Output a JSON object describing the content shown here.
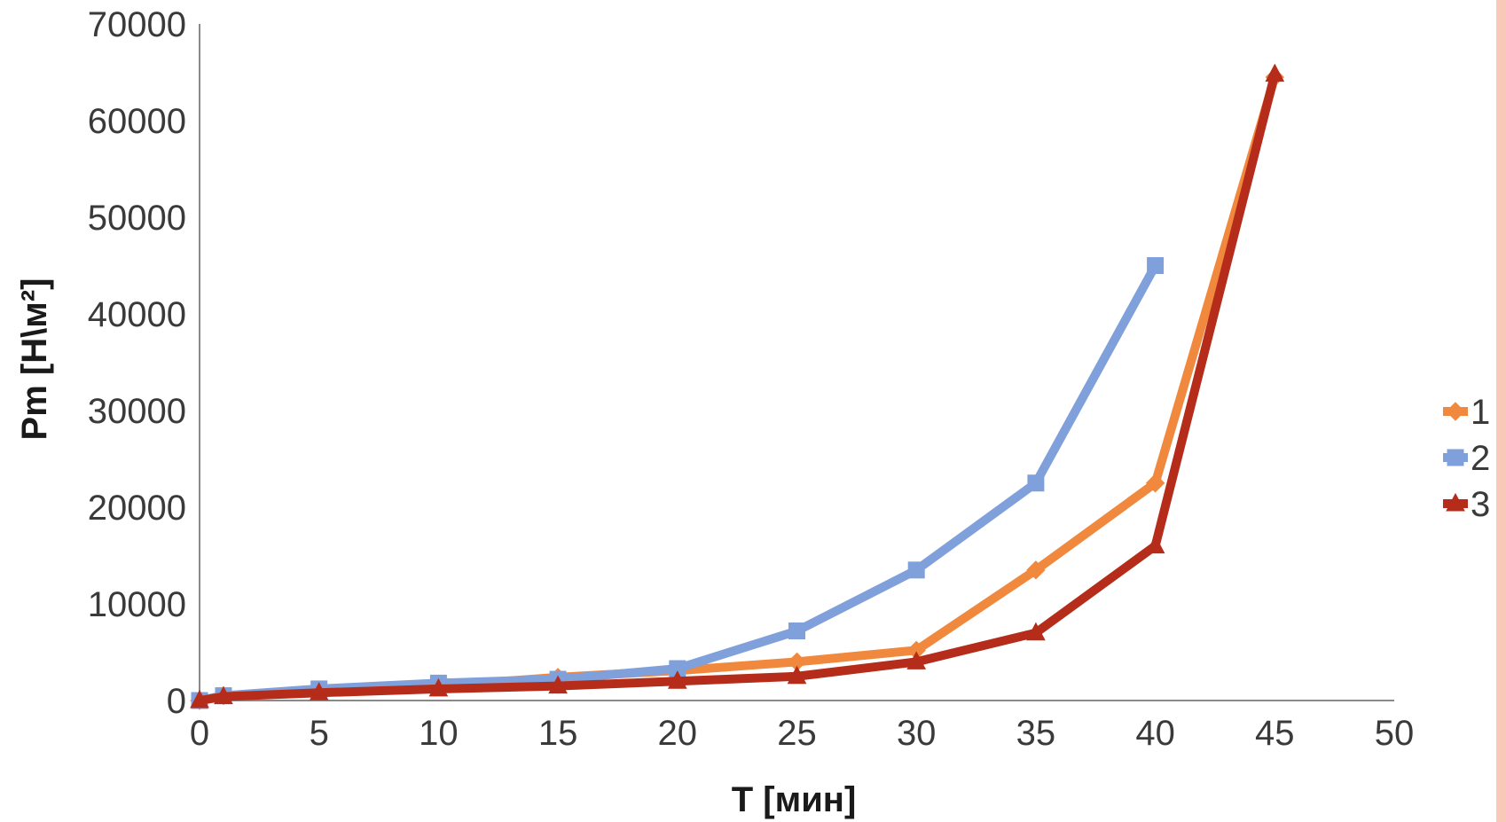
{
  "chart_data": {
    "type": "line",
    "title": "",
    "xlabel": "T  [мин]",
    "ylabel": "Pm [Н\\м²]",
    "xlim": [
      0,
      50
    ],
    "ylim": [
      0,
      70000
    ],
    "x_ticks": [
      0,
      5,
      10,
      15,
      20,
      25,
      30,
      35,
      40,
      45,
      50
    ],
    "y_ticks": [
      0,
      10000,
      20000,
      30000,
      40000,
      50000,
      60000,
      70000
    ],
    "grid": false,
    "legend_position": "right",
    "series": [
      {
        "name": "1",
        "color": "#f0883e",
        "marker": "diamond",
        "x": [
          0,
          1,
          5,
          10,
          15,
          20,
          25,
          30,
          35,
          40,
          45
        ],
        "y": [
          0,
          500,
          1000,
          1500,
          2400,
          3100,
          4000,
          5200,
          13500,
          22500,
          64500
        ]
      },
      {
        "name": "2",
        "color": "#7fa0da",
        "marker": "square",
        "x": [
          0,
          1,
          5,
          10,
          15,
          20,
          25,
          30,
          35,
          40
        ],
        "y": [
          0,
          500,
          1200,
          1800,
          2200,
          3300,
          7200,
          13500,
          22500,
          45000
        ]
      },
      {
        "name": "3",
        "color": "#b52c1a",
        "marker": "triangle",
        "x": [
          0,
          1,
          5,
          10,
          15,
          20,
          25,
          30,
          35,
          40,
          45
        ],
        "y": [
          0,
          400,
          800,
          1200,
          1500,
          2000,
          2500,
          4000,
          7000,
          16000,
          64800
        ]
      }
    ]
  }
}
